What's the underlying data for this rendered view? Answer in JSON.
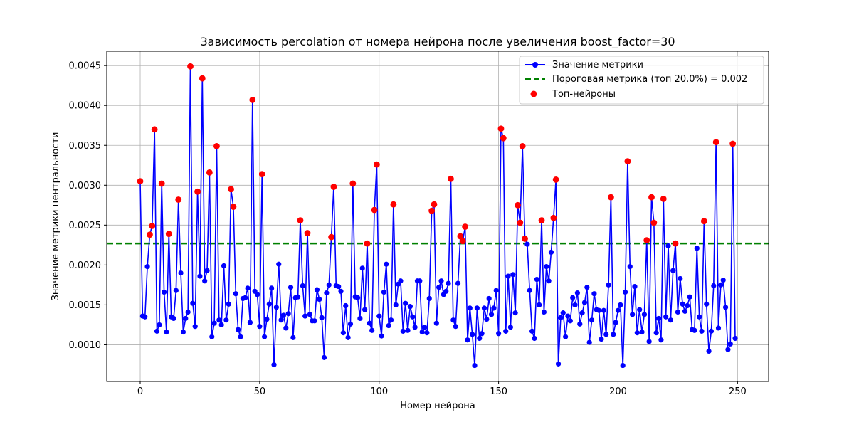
{
  "chart_data": {
    "type": "line",
    "title": "Зависимость percolation от номера нейрона после увеличения boost_factor=30",
    "xlabel": "Номер нейрона",
    "ylabel": "Значение метрики центральности",
    "xlim": [
      -14,
      263
    ],
    "ylim": [
      0.00054,
      0.00468
    ],
    "xticks": [
      0,
      50,
      100,
      150,
      200,
      250
    ],
    "yticks": [
      0.001,
      0.0015,
      0.002,
      0.0025,
      0.003,
      0.0035,
      0.004,
      0.0045
    ],
    "ytick_labels": [
      "0.0010",
      "0.0015",
      "0.0020",
      "0.0025",
      "0.0030",
      "0.0035",
      "0.0040",
      "0.0045"
    ],
    "grid": true,
    "legend_position": "top-right",
    "threshold": 0.00227,
    "threshold_color": "#008000",
    "line_color": "#0000ff",
    "top_color": "#ff0000",
    "legend": [
      {
        "label": "Значение метрики",
        "kind": "line-marker"
      },
      {
        "label": "Пороговая метрика (топ 20.0%) = 0.002",
        "kind": "dashed"
      },
      {
        "label": "Топ-нейроны",
        "kind": "scatter"
      }
    ],
    "values": [
      0.00305,
      0.00136,
      0.00135,
      0.00198,
      0.00238,
      0.00249,
      0.0037,
      0.00117,
      0.00125,
      0.00302,
      0.00166,
      0.00116,
      0.00239,
      0.00135,
      0.00133,
      0.00168,
      0.00282,
      0.0019,
      0.00116,
      0.00133,
      0.00141,
      0.00449,
      0.00152,
      0.00123,
      0.00292,
      0.00186,
      0.00434,
      0.0018,
      0.00193,
      0.00316,
      0.0011,
      0.00127,
      0.00349,
      0.00131,
      0.00125,
      0.00199,
      0.00131,
      0.00151,
      0.00295,
      0.00273,
      0.00164,
      0.00119,
      0.0011,
      0.00158,
      0.00159,
      0.00171,
      0.00128,
      0.00407,
      0.00167,
      0.00163,
      0.00123,
      0.00314,
      0.0011,
      0.00132,
      0.00151,
      0.00171,
      0.00075,
      0.00147,
      0.00201,
      0.00131,
      0.00137,
      0.00121,
      0.00139,
      0.00172,
      0.00109,
      0.00159,
      0.0016,
      0.00256,
      0.00174,
      0.00136,
      0.0024,
      0.00138,
      0.0013,
      0.0013,
      0.00169,
      0.00157,
      0.00134,
      0.00084,
      0.00165,
      0.00175,
      0.00235,
      0.00298,
      0.00174,
      0.00173,
      0.00167,
      0.00115,
      0.00149,
      0.00109,
      0.00126,
      0.00302,
      0.0016,
      0.00159,
      0.00133,
      0.00196,
      0.00144,
      0.00227,
      0.00127,
      0.00118,
      0.00269,
      0.00326,
      0.00136,
      0.00111,
      0.00166,
      0.00201,
      0.00124,
      0.00131,
      0.00276,
      0.0015,
      0.00176,
      0.0018,
      0.00117,
      0.00152,
      0.00118,
      0.00148,
      0.00135,
      0.00122,
      0.0018,
      0.0018,
      0.00116,
      0.00122,
      0.00115,
      0.00158,
      0.00268,
      0.00276,
      0.00127,
      0.00172,
      0.0018,
      0.00163,
      0.00167,
      0.00177,
      0.00308,
      0.00131,
      0.00123,
      0.00177,
      0.00236,
      0.0023,
      0.00248,
      0.00106,
      0.00146,
      0.00113,
      0.00074,
      0.00146,
      0.00108,
      0.00114,
      0.00146,
      0.00132,
      0.00158,
      0.00138,
      0.00146,
      0.00168,
      0.00114,
      0.00371,
      0.00359,
      0.00117,
      0.00186,
      0.00122,
      0.00188,
      0.0014,
      0.00275,
      0.00253,
      0.00349,
      0.00233,
      0.00226,
      0.00168,
      0.00117,
      0.00108,
      0.00182,
      0.0015,
      0.00256,
      0.00141,
      0.00198,
      0.0018,
      0.00216,
      0.00259,
      0.00307,
      0.00076,
      0.00134,
      0.0014,
      0.0011,
      0.00136,
      0.0013,
      0.00159,
      0.0015,
      0.00165,
      0.00126,
      0.0014,
      0.00153,
      0.00172,
      0.00103,
      0.00131,
      0.00164,
      0.00144,
      0.00143,
      0.00107,
      0.00143,
      0.00113,
      0.00175,
      0.00285,
      0.00113,
      0.00128,
      0.00143,
      0.0015,
      0.00074,
      0.00166,
      0.0033,
      0.00198,
      0.00138,
      0.00173,
      0.00115,
      0.00144,
      0.00116,
      0.00138,
      0.00231,
      0.00104,
      0.00285,
      0.00253,
      0.00115,
      0.00133,
      0.00106,
      0.00283,
      0.00135,
      0.00224,
      0.00131,
      0.00193,
      0.00227,
      0.00141,
      0.00183,
      0.00151,
      0.00142,
      0.00149,
      0.0016,
      0.00119,
      0.00118,
      0.00221,
      0.00135,
      0.00117,
      0.00255,
      0.00151,
      0.00092,
      0.00117,
      0.00174,
      0.00354,
      0.00121,
      0.00175,
      0.00181,
      0.00147,
      0.00094,
      0.00101,
      0.00352,
      0.00108
    ]
  }
}
